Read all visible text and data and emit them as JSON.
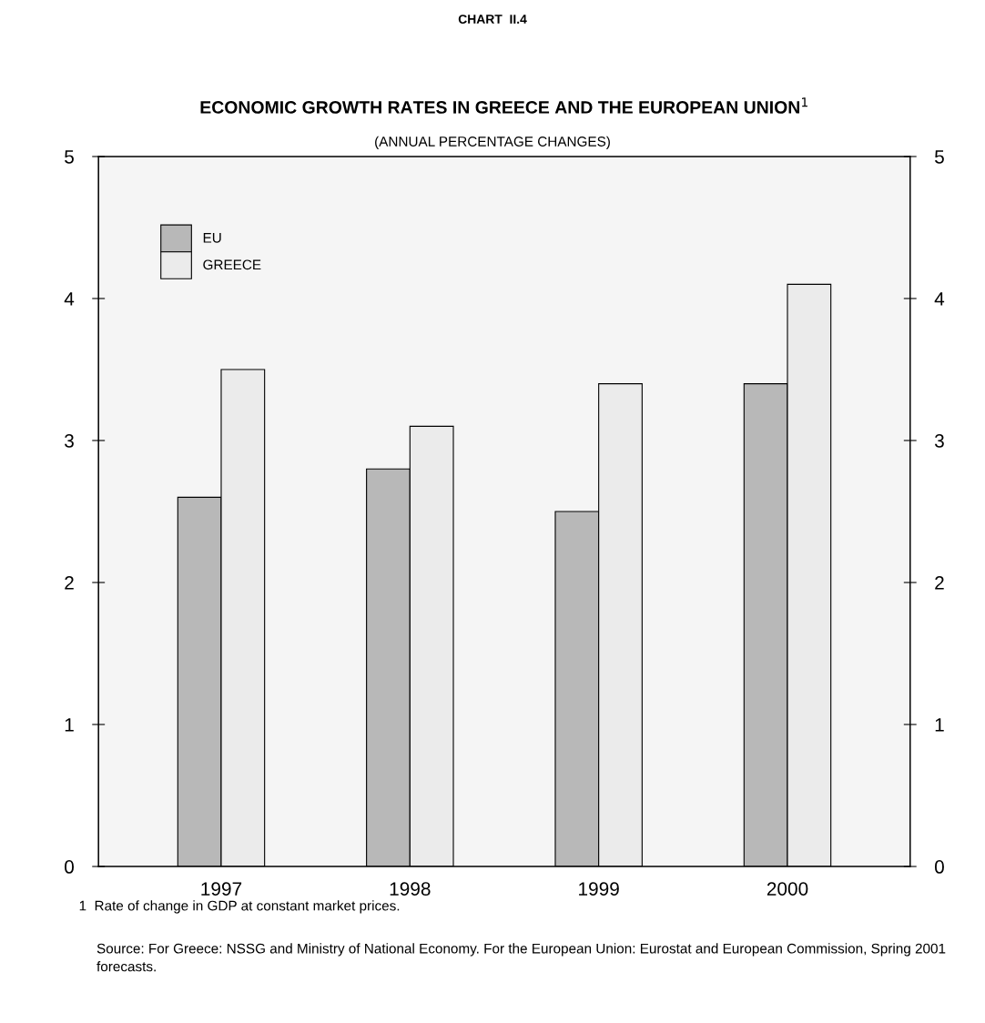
{
  "chart_data": {
    "type": "bar",
    "title": "ECONOMIC GROWTH RATES IN GREECE AND THE EUROPEAN UNION$^{1}$",
    "subtitle": "(ANNUAL PERCENTAGE CHANGES)",
    "annotations": [
      "CHART  II.4",
      "1  Rate of change in GDP at constant market prices.",
      "Source: For Greece: NSSG and Ministry of National Economy. For the European Union: Eurostat and European Commission, Spring 2001 forecasts."
    ],
    "categories": [
      "1997",
      "1998",
      "1999",
      "2000"
    ],
    "series": [
      {
        "name": "EU",
        "color": "#b8b8b8",
        "values": [
          2.6,
          2.8,
          2.5,
          3.4
        ]
      },
      {
        "name": "GREECE",
        "color": "#ebebeb",
        "values": [
          3.5,
          3.1,
          3.4,
          4.1
        ]
      }
    ],
    "ylim": [
      0,
      5
    ],
    "yticks": [
      0,
      1,
      2,
      3,
      4,
      5
    ],
    "y2lim": [
      0,
      5
    ],
    "y2ticks": [
      0,
      1,
      2,
      3,
      4,
      5
    ],
    "legend": "top left",
    "grid": false
  }
}
